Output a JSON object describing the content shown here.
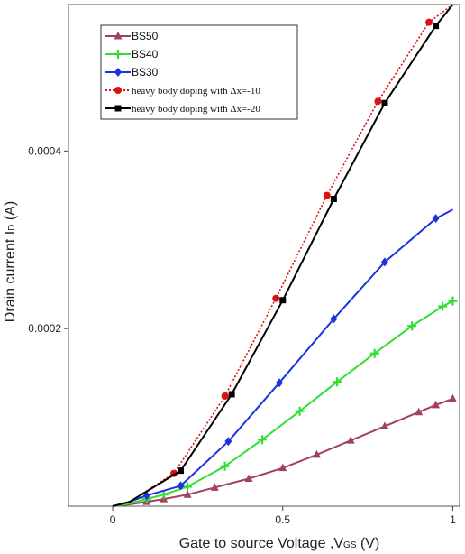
{
  "chart_data": {
    "type": "line",
    "xlabel": "Gate to source Voltage ,V",
    "xlabel_sub": "GS",
    "xlabel_unit": " (V)",
    "ylabel": "Drain current I",
    "ylabel_sub": "D",
    "ylabel_unit": " (A)",
    "xlim": [
      -0.13,
      1.02
    ],
    "ylim": [
      0,
      0.000565
    ],
    "x_ticks": [
      0,
      0.5,
      1
    ],
    "x_tick_labels": [
      "0",
      "0.5",
      "1"
    ],
    "y_ticks": [
      0.0002,
      0.0004
    ],
    "y_tick_labels": [
      "0.0002",
      "0.0004"
    ],
    "grid": false,
    "legend_position": "top-left",
    "series": [
      {
        "name": "BS50",
        "color": "#a2415f",
        "line_style": "solid",
        "marker": "triangle",
        "x": [
          0,
          0.05,
          0.1,
          0.15,
          0.22,
          0.3,
          0.4,
          0.5,
          0.6,
          0.7,
          0.8,
          0.9,
          0.95,
          1.0
        ],
        "y": [
          0,
          2e-06,
          5e-06,
          8e-06,
          1.3e-05,
          2.1e-05,
          3.1e-05,
          4.3e-05,
          5.8e-05,
          7.4e-05,
          9e-05,
          0.000106,
          0.000114,
          0.000121
        ]
      },
      {
        "name": "BS40",
        "color": "#33dd33",
        "line_style": "solid",
        "marker": "plus",
        "x": [
          0,
          0.05,
          0.1,
          0.15,
          0.22,
          0.33,
          0.44,
          0.55,
          0.66,
          0.77,
          0.88,
          0.97,
          1.0
        ],
        "y": [
          0,
          3e-06,
          8e-06,
          1.3e-05,
          2.2e-05,
          4.5e-05,
          7.5e-05,
          0.000107,
          0.00014,
          0.000172,
          0.000203,
          0.000225,
          0.000231
        ]
      },
      {
        "name": "BS30",
        "color": "#1a33dd",
        "line_style": "solid",
        "marker": "diamond",
        "x": [
          0,
          0.05,
          0.1,
          0.2,
          0.34,
          0.49,
          0.65,
          0.8,
          0.95,
          1.0
        ],
        "y": [
          0,
          5e-06,
          1.2e-05,
          2.3e-05,
          7.3e-05,
          0.000139,
          0.000211,
          0.000275,
          0.000324,
          0.000334
        ]
      },
      {
        "name": "heavy body doping with Δx=-10",
        "color": "#dd1111",
        "line_style": "dotted",
        "marker": "circle",
        "x": [
          0,
          0.05,
          0.18,
          0.33,
          0.48,
          0.63,
          0.78,
          0.93,
          1.0
        ],
        "y": [
          0,
          5e-06,
          3.7e-05,
          0.000124,
          0.000234,
          0.00035,
          0.000456,
          0.000545,
          0.000565
        ]
      },
      {
        "name": "heavy body doping with Δx=-20",
        "color": "#000000",
        "line_style": "solid",
        "marker": "square",
        "x": [
          0,
          0.05,
          0.2,
          0.35,
          0.5,
          0.65,
          0.8,
          0.95,
          1.0
        ],
        "y": [
          0,
          5e-06,
          4e-05,
          0.000126,
          0.000232,
          0.000346,
          0.000454,
          0.000541,
          0.000565
        ]
      }
    ]
  }
}
